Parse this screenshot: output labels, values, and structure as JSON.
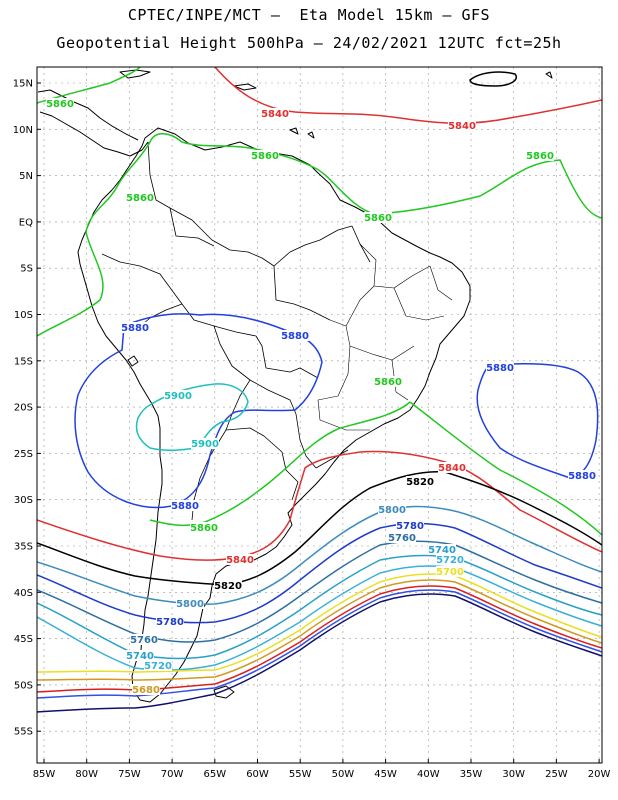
{
  "title_line1": "CPTEC/INPE/MCT –  Eta Model 15km – GFS",
  "title_line2": "Geopotential Height 500hPa – 24/02/2021 12UTC fct=25h",
  "lat_labels": [
    "15N",
    "10N",
    "5N",
    "EQ",
    "5S",
    "10S",
    "15S",
    "20S",
    "25S",
    "30S",
    "35S",
    "40S",
    "45S",
    "50S",
    "55S"
  ],
  "lon_labels": [
    "85W",
    "80W",
    "75W",
    "70W",
    "65W",
    "60W",
    "55W",
    "50W",
    "45W",
    "40W",
    "35W",
    "30W",
    "25W",
    "20W"
  ],
  "contour_colors": {
    "5900": "#1fbfbf",
    "5880": "#2040e0",
    "5860": "#20c820",
    "5840": "#e03030",
    "5820": "#000000",
    "5800": "#3c8cbe",
    "5780": "#1e3cc8",
    "5760": "#2e6fa0",
    "5740": "#28a0c8",
    "5720": "#3ab0d8",
    "5700": "#e8e020",
    "5680": "#d09a20",
    "5660": "#d82020",
    "5640": "#3050e8",
    "5620": "#10106a"
  },
  "contour_labels": [
    {
      "text": "5860",
      "c": "5860"
    },
    {
      "text": "5840",
      "c": "5840"
    },
    {
      "text": "5840",
      "c": "5840"
    },
    {
      "text": "5860",
      "c": "5860"
    },
    {
      "text": "5860",
      "c": "5860"
    },
    {
      "text": "5860",
      "c": "5860"
    },
    {
      "text": "5860",
      "c": "5860"
    },
    {
      "text": "5880",
      "c": "5880"
    },
    {
      "text": "5880",
      "c": "5880"
    },
    {
      "text": "5880",
      "c": "5880"
    },
    {
      "text": "5860",
      "c": "5860"
    },
    {
      "text": "5900",
      "c": "5900"
    },
    {
      "text": "5900",
      "c": "5900"
    },
    {
      "text": "5840",
      "c": "5840"
    },
    {
      "text": "5820",
      "c": "5820"
    },
    {
      "text": "5880",
      "c": "5880"
    },
    {
      "text": "5880",
      "c": "5880"
    },
    {
      "text": "5860",
      "c": "5860"
    },
    {
      "text": "5800",
      "c": "5800"
    },
    {
      "text": "5780",
      "c": "5780"
    },
    {
      "text": "5760",
      "c": "5760"
    },
    {
      "text": "5740",
      "c": "5740"
    },
    {
      "text": "5720",
      "c": "5720"
    },
    {
      "text": "5700",
      "c": "5700"
    },
    {
      "text": "5840",
      "c": "5840"
    },
    {
      "text": "5820",
      "c": "5820"
    },
    {
      "text": "5800",
      "c": "5800"
    },
    {
      "text": "5780",
      "c": "5780"
    },
    {
      "text": "5760",
      "c": "5760"
    },
    {
      "text": "5740",
      "c": "5740"
    },
    {
      "text": "5720",
      "c": "5720"
    },
    {
      "text": "5680",
      "c": "5680"
    }
  ]
}
